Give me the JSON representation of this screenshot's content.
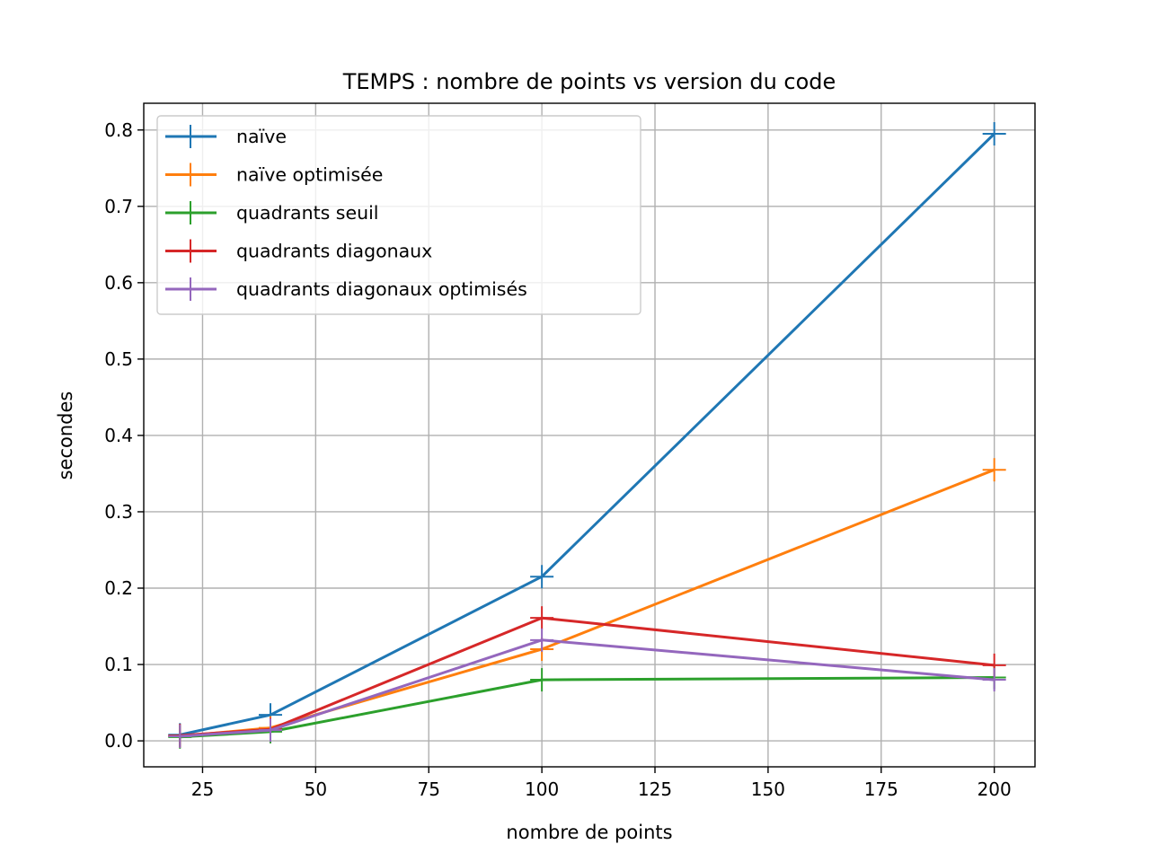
{
  "chart_data": {
    "type": "line",
    "title": "TEMPS : nombre de points vs version du code",
    "xlabel": "nombre de points",
    "ylabel": "secondes",
    "xlim": [
      12,
      209
    ],
    "ylim": [
      -0.034,
      0.835
    ],
    "xticks": [
      25,
      50,
      75,
      100,
      125,
      150,
      175,
      200
    ],
    "yticks": [
      0.0,
      0.1,
      0.2,
      0.3,
      0.4,
      0.5,
      0.6,
      0.7,
      0.8
    ],
    "ytick_labels": [
      "0.0",
      "0.1",
      "0.2",
      "0.3",
      "0.4",
      "0.5",
      "0.6",
      "0.7",
      "0.8"
    ],
    "grid": true,
    "legend_position": "upper-left",
    "marker": "plus",
    "x": [
      20,
      40,
      100,
      200
    ],
    "series": [
      {
        "name": "naïve",
        "color": "#1f77b4",
        "values": [
          0.008,
          0.034,
          0.215,
          0.795
        ]
      },
      {
        "name": "naïve optimisée",
        "color": "#ff7f0e",
        "values": [
          0.006,
          0.017,
          0.12,
          0.355
        ]
      },
      {
        "name": "quadrants seuil",
        "color": "#2ca02c",
        "values": [
          0.005,
          0.012,
          0.08,
          0.083
        ]
      },
      {
        "name": "quadrants diagonaux",
        "color": "#d62728",
        "values": [
          0.007,
          0.015,
          0.161,
          0.099
        ]
      },
      {
        "name": "quadrants diagonaux optimisés",
        "color": "#9467bd",
        "values": [
          0.006,
          0.014,
          0.132,
          0.08
        ]
      }
    ]
  }
}
